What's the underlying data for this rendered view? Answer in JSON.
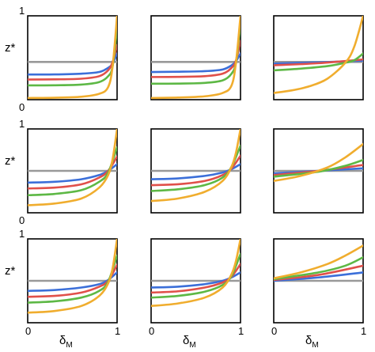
{
  "chart_data": {
    "type": "line",
    "layout": "3x3 grid of small multiples",
    "shared_axes": {
      "xlabel": "δ",
      "xlabel_subscript": "M",
      "ylabel": "z*",
      "xlim": [
        0,
        1
      ],
      "ylim": [
        0,
        1
      ],
      "x_tick_labels": [
        "0",
        "1"
      ],
      "y_tick_labels": [
        "0",
        "1"
      ]
    },
    "colors": {
      "gray": "#999999",
      "blue": "#3b6fd9",
      "red": "#e0504a",
      "green": "#5db845",
      "orange": "#f0ad2e"
    },
    "grid": false,
    "legend": "none",
    "panels": [
      {
        "row": 1,
        "col": 1,
        "series": [
          {
            "color": "gray",
            "x": [
              0,
              1
            ],
            "y": [
              0.45,
              0.45
            ]
          },
          {
            "color": "blue",
            "x": [
              0,
              0.3,
              0.6,
              0.8,
              0.9,
              0.95,
              1.0
            ],
            "y": [
              0.3,
              0.301,
              0.31,
              0.33,
              0.38,
              0.43,
              0.55
            ]
          },
          {
            "color": "red",
            "x": [
              0,
              0.3,
              0.6,
              0.8,
              0.9,
              0.95,
              1.0
            ],
            "y": [
              0.24,
              0.242,
              0.25,
              0.28,
              0.35,
              0.45,
              0.65
            ]
          },
          {
            "color": "green",
            "x": [
              0,
              0.3,
              0.6,
              0.8,
              0.9,
              0.95,
              1.0
            ],
            "y": [
              0.17,
              0.172,
              0.18,
              0.21,
              0.28,
              0.4,
              0.85
            ]
          },
          {
            "color": "orange",
            "x": [
              0,
              0.3,
              0.6,
              0.8,
              0.9,
              0.95,
              1.0
            ],
            "y": [
              0.02,
              0.023,
              0.035,
              0.07,
              0.15,
              0.4,
              1.0
            ]
          }
        ]
      },
      {
        "row": 1,
        "col": 2,
        "series": [
          {
            "color": "gray",
            "x": [
              0,
              1
            ],
            "y": [
              0.45,
              0.45
            ]
          },
          {
            "color": "blue",
            "x": [
              0,
              0.3,
              0.6,
              0.8,
              0.9,
              0.95,
              1.0
            ],
            "y": [
              0.33,
              0.333,
              0.34,
              0.36,
              0.41,
              0.46,
              0.55
            ]
          },
          {
            "color": "red",
            "x": [
              0,
              0.3,
              0.6,
              0.8,
              0.9,
              0.95,
              1.0
            ],
            "y": [
              0.27,
              0.272,
              0.28,
              0.31,
              0.38,
              0.47,
              0.7
            ]
          },
          {
            "color": "green",
            "x": [
              0,
              0.3,
              0.6,
              0.8,
              0.9,
              0.95,
              1.0
            ],
            "y": [
              0.19,
              0.192,
              0.2,
              0.23,
              0.31,
              0.45,
              0.9
            ]
          },
          {
            "color": "orange",
            "x": [
              0,
              0.3,
              0.6,
              0.8,
              0.9,
              0.95,
              1.0
            ],
            "y": [
              0.02,
              0.025,
              0.04,
              0.08,
              0.17,
              0.45,
              1.0
            ]
          }
        ]
      },
      {
        "row": 1,
        "col": 3,
        "series": [
          {
            "color": "gray",
            "x": [
              0,
              1
            ],
            "y": [
              0.45,
              0.45
            ]
          },
          {
            "color": "blue",
            "x": [
              0,
              0.5,
              1.0
            ],
            "y": [
              0.43,
              0.445,
              0.465
            ]
          },
          {
            "color": "red",
            "x": [
              0,
              0.5,
              1.0
            ],
            "y": [
              0.41,
              0.435,
              0.48
            ]
          },
          {
            "color": "green",
            "x": [
              0,
              0.3,
              0.6,
              0.8,
              0.9,
              1.0
            ],
            "y": [
              0.35,
              0.37,
              0.4,
              0.44,
              0.47,
              0.55
            ]
          },
          {
            "color": "orange",
            "x": [
              0,
              0.2,
              0.4,
              0.6,
              0.8,
              0.9,
              1.0
            ],
            "y": [
              0.08,
              0.11,
              0.16,
              0.25,
              0.44,
              0.63,
              1.0
            ]
          }
        ]
      },
      {
        "row": 2,
        "col": 1,
        "series": [
          {
            "color": "gray",
            "x": [
              0,
              1
            ],
            "y": [
              0.5,
              0.5
            ]
          },
          {
            "color": "blue",
            "x": [
              0,
              0.3,
              0.6,
              0.8,
              0.9,
              1.0
            ],
            "y": [
              0.36,
              0.37,
              0.4,
              0.45,
              0.5,
              0.58
            ]
          },
          {
            "color": "red",
            "x": [
              0,
              0.3,
              0.6,
              0.8,
              0.9,
              1.0
            ],
            "y": [
              0.29,
              0.3,
              0.34,
              0.42,
              0.5,
              0.67
            ]
          },
          {
            "color": "green",
            "x": [
              0,
              0.3,
              0.6,
              0.8,
              0.9,
              1.0
            ],
            "y": [
              0.21,
              0.225,
              0.27,
              0.37,
              0.48,
              0.78
            ]
          },
          {
            "color": "orange",
            "x": [
              0,
              0.3,
              0.6,
              0.8,
              0.9,
              0.95,
              1.0
            ],
            "y": [
              0.09,
              0.11,
              0.17,
              0.3,
              0.45,
              0.64,
              1.0
            ]
          }
        ]
      },
      {
        "row": 2,
        "col": 2,
        "series": [
          {
            "color": "gray",
            "x": [
              0,
              1
            ],
            "y": [
              0.5,
              0.5
            ]
          },
          {
            "color": "blue",
            "x": [
              0,
              0.3,
              0.6,
              0.8,
              0.9,
              1.0
            ],
            "y": [
              0.4,
              0.41,
              0.44,
              0.48,
              0.52,
              0.58
            ]
          },
          {
            "color": "red",
            "x": [
              0,
              0.3,
              0.6,
              0.8,
              0.9,
              1.0
            ],
            "y": [
              0.33,
              0.34,
              0.38,
              0.45,
              0.53,
              0.68
            ]
          },
          {
            "color": "green",
            "x": [
              0,
              0.3,
              0.6,
              0.8,
              0.9,
              1.0
            ],
            "y": [
              0.26,
              0.28,
              0.33,
              0.42,
              0.55,
              0.8
            ]
          },
          {
            "color": "orange",
            "x": [
              0,
              0.3,
              0.6,
              0.8,
              0.9,
              0.95,
              1.0
            ],
            "y": [
              0.14,
              0.17,
              0.25,
              0.38,
              0.55,
              0.72,
              1.0
            ]
          }
        ]
      },
      {
        "row": 2,
        "col": 3,
        "series": [
          {
            "color": "gray",
            "x": [
              0,
              1
            ],
            "y": [
              0.5,
              0.5
            ]
          },
          {
            "color": "blue",
            "x": [
              0,
              0.5,
              1.0
            ],
            "y": [
              0.47,
              0.5,
              0.53
            ]
          },
          {
            "color": "red",
            "x": [
              0,
              0.5,
              1.0
            ],
            "y": [
              0.45,
              0.5,
              0.57
            ]
          },
          {
            "color": "green",
            "x": [
              0,
              0.5,
              0.8,
              1.0
            ],
            "y": [
              0.43,
              0.49,
              0.56,
              0.63
            ]
          },
          {
            "color": "orange",
            "x": [
              0,
              0.3,
              0.6,
              0.8,
              1.0
            ],
            "y": [
              0.38,
              0.44,
              0.54,
              0.66,
              0.82
            ]
          }
        ]
      },
      {
        "row": 3,
        "col": 1,
        "series": [
          {
            "color": "gray",
            "x": [
              0,
              1
            ],
            "y": [
              0.5,
              0.5
            ]
          },
          {
            "color": "blue",
            "x": [
              0,
              0.3,
              0.6,
              0.8,
              0.9,
              1.0
            ],
            "y": [
              0.38,
              0.39,
              0.42,
              0.46,
              0.51,
              0.6
            ]
          },
          {
            "color": "red",
            "x": [
              0,
              0.3,
              0.6,
              0.8,
              0.9,
              1.0
            ],
            "y": [
              0.31,
              0.32,
              0.36,
              0.43,
              0.5,
              0.69
            ]
          },
          {
            "color": "green",
            "x": [
              0,
              0.3,
              0.6,
              0.8,
              0.9,
              1.0
            ],
            "y": [
              0.24,
              0.255,
              0.3,
              0.38,
              0.49,
              0.8
            ]
          },
          {
            "color": "orange",
            "x": [
              0,
              0.3,
              0.6,
              0.8,
              0.9,
              0.95,
              1.0
            ],
            "y": [
              0.12,
              0.14,
              0.2,
              0.32,
              0.47,
              0.65,
              1.0
            ]
          }
        ]
      },
      {
        "row": 3,
        "col": 2,
        "series": [
          {
            "color": "gray",
            "x": [
              0,
              1
            ],
            "y": [
              0.5,
              0.5
            ]
          },
          {
            "color": "blue",
            "x": [
              0,
              0.3,
              0.6,
              0.8,
              0.9,
              1.0
            ],
            "y": [
              0.42,
              0.43,
              0.46,
              0.5,
              0.54,
              0.6
            ]
          },
          {
            "color": "red",
            "x": [
              0,
              0.3,
              0.6,
              0.8,
              0.9,
              1.0
            ],
            "y": [
              0.36,
              0.375,
              0.42,
              0.48,
              0.55,
              0.7
            ]
          },
          {
            "color": "green",
            "x": [
              0,
              0.3,
              0.6,
              0.8,
              0.9,
              1.0
            ],
            "y": [
              0.3,
              0.32,
              0.37,
              0.45,
              0.56,
              0.82
            ]
          },
          {
            "color": "orange",
            "x": [
              0,
              0.3,
              0.6,
              0.8,
              0.9,
              0.95,
              1.0
            ],
            "y": [
              0.2,
              0.23,
              0.3,
              0.42,
              0.58,
              0.74,
              1.0
            ]
          }
        ]
      },
      {
        "row": 3,
        "col": 3,
        "series": [
          {
            "color": "gray",
            "x": [
              0,
              1
            ],
            "y": [
              0.5,
              0.5
            ]
          },
          {
            "color": "blue",
            "x": [
              0,
              0.5,
              1.0
            ],
            "y": [
              0.5,
              0.54,
              0.6
            ]
          },
          {
            "color": "red",
            "x": [
              0,
              0.5,
              1.0
            ],
            "y": [
              0.51,
              0.57,
              0.68
            ]
          },
          {
            "color": "green",
            "x": [
              0,
              0.5,
              0.8,
              1.0
            ],
            "y": [
              0.52,
              0.6,
              0.68,
              0.78
            ]
          },
          {
            "color": "orange",
            "x": [
              0,
              0.3,
              0.6,
              0.8,
              1.0
            ],
            "y": [
              0.53,
              0.6,
              0.7,
              0.8,
              0.92
            ]
          }
        ]
      }
    ]
  }
}
